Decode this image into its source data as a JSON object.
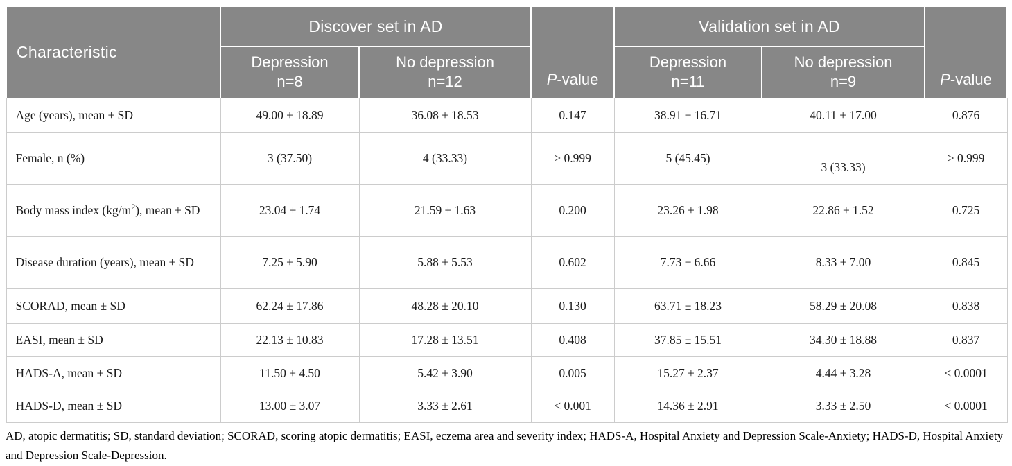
{
  "colors": {
    "header_bg": "#878787",
    "header_text": "#ffffff",
    "border": "#cccccc",
    "text": "#1c1c1c"
  },
  "table": {
    "header": {
      "characteristic": "Characteristic",
      "p_italic": "P",
      "p_rest": "-value",
      "groups": [
        {
          "label": "Discover set in AD",
          "sub": [
            {
              "line1": "Depression",
              "line2": "n=8"
            },
            {
              "line1": "No depression",
              "line2": "n=12"
            }
          ]
        },
        {
          "label": "Validation set in AD",
          "sub": [
            {
              "line1": "Depression",
              "line2": "n=11"
            },
            {
              "line1": "No depression",
              "line2": "n=9"
            }
          ]
        }
      ]
    },
    "rows": [
      {
        "label_parts": [
          {
            "t": "Age (years), mean ± SD"
          }
        ],
        "values": [
          "49.00 ± 18.89",
          "36.08 ± 18.53",
          "0.147",
          "38.91 ± 16.71",
          "40.11 ± 17.00",
          "0.876"
        ]
      },
      {
        "label_parts": [
          {
            "t": "Female, n (%)"
          }
        ],
        "values": [
          "3 (37.50)",
          "4 (33.33)",
          "> 0.999",
          "5 (45.45)",
          "3 (33.33)",
          "> 0.999"
        ],
        "offset_cells": [
          4
        ]
      },
      {
        "label_parts": [
          {
            "t": "Body mass index (kg/m"
          },
          {
            "t": "2",
            "sup": true
          },
          {
            "t": "), mean ± SD"
          }
        ],
        "values": [
          "23.04 ± 1.74",
          "21.59 ± 1.63",
          "0.200",
          "23.26 ± 1.98",
          "22.86 ± 1.52",
          "0.725"
        ]
      },
      {
        "label_parts": [
          {
            "t": "Disease duration (years), mean ± SD"
          }
        ],
        "values": [
          "7.25 ± 5.90",
          "5.88 ± 5.53",
          "0.602",
          "7.73 ± 6.66",
          "8.33 ± 7.00",
          "0.845"
        ]
      },
      {
        "label_parts": [
          {
            "t": "SCORAD, mean ± SD"
          }
        ],
        "values": [
          "62.24 ± 17.86",
          "48.28 ± 20.10",
          "0.130",
          "63.71 ± 18.23",
          "58.29 ± 20.08",
          "0.838"
        ]
      },
      {
        "label_parts": [
          {
            "t": "EASI, mean ± SD"
          }
        ],
        "values": [
          "22.13 ± 10.83",
          "17.28 ± 13.51",
          "0.408",
          "37.85 ± 15.51",
          "34.30 ± 18.88",
          "0.837"
        ]
      },
      {
        "label_parts": [
          {
            "t": "HADS-A, mean ± SD"
          }
        ],
        "values": [
          "11.50 ± 4.50",
          "5.42 ± 3.90",
          "0.005",
          "15.27 ± 2.37",
          "4.44 ± 3.28",
          "< 0.0001"
        ]
      },
      {
        "label_parts": [
          {
            "t": "HADS-D, mean ± SD"
          }
        ],
        "values": [
          "13.00 ± 3.07",
          "3.33 ± 2.61",
          "< 0.001",
          "14.36 ± 2.91",
          "3.33 ± 2.50",
          "< 0.0001"
        ]
      }
    ],
    "footnote": "AD, atopic dermatitis; SD, standard deviation; SCORAD, scoring atopic dermatitis; EASI, eczema area and severity index; HADS-A, Hospital Anxiety and Depression Scale-Anxiety; HADS-D, Hospital Anxiety and Depression Scale-Depression."
  }
}
